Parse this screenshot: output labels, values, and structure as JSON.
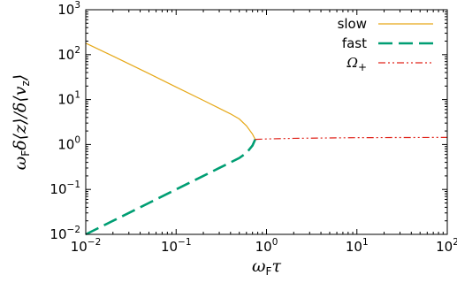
{
  "chart_data": {
    "type": "line",
    "xscale": "log",
    "yscale": "log",
    "xlim": [
      0.01,
      100
    ],
    "ylim": [
      0.01,
      1000
    ],
    "x_ticks": [
      {
        "base": "10",
        "exp": "−2",
        "value": 0.01
      },
      {
        "base": "10",
        "exp": "−1",
        "value": 0.1
      },
      {
        "base": "10",
        "exp": "0",
        "value": 1
      },
      {
        "base": "10",
        "exp": "1",
        "value": 10
      },
      {
        "base": "10",
        "exp": "2",
        "value": 100
      }
    ],
    "y_ticks": [
      {
        "base": "10",
        "exp": "−2",
        "value": 0.01
      },
      {
        "base": "10",
        "exp": "−1",
        "value": 0.1
      },
      {
        "base": "10",
        "exp": "0",
        "value": 1
      },
      {
        "base": "10",
        "exp": "1",
        "value": 10
      },
      {
        "base": "10",
        "exp": "2",
        "value": 100
      },
      {
        "base": "10",
        "exp": "3",
        "value": 1000
      }
    ],
    "xlabel": {
      "main": "ω",
      "sub": "F",
      "rest": "τ"
    },
    "ylabel": {
      "main": "ω",
      "sub": "F",
      "rest": "δ⟨z⟩/δ⟨v",
      "sub2": "z",
      "end": "⟩"
    },
    "legend_position": "top-right",
    "grid": false,
    "series": [
      {
        "name": "slow",
        "color": "#e6a817",
        "style": "solid",
        "points": [
          [
            0.01,
            180
          ],
          [
            0.02,
            93
          ],
          [
            0.05,
            38
          ],
          [
            0.1,
            19
          ],
          [
            0.2,
            9.6
          ],
          [
            0.3,
            6.4
          ],
          [
            0.4,
            4.8
          ],
          [
            0.5,
            3.7
          ],
          [
            0.6,
            2.6
          ],
          [
            0.7,
            1.7
          ],
          [
            0.75,
            1.3
          ]
        ]
      },
      {
        "name": "fast",
        "color": "#009e73",
        "style": "dashed",
        "points": [
          [
            0.01,
            0.01
          ],
          [
            0.02,
            0.02
          ],
          [
            0.05,
            0.05
          ],
          [
            0.1,
            0.1
          ],
          [
            0.2,
            0.2
          ],
          [
            0.3,
            0.3
          ],
          [
            0.4,
            0.4
          ],
          [
            0.5,
            0.5
          ],
          [
            0.6,
            0.65
          ],
          [
            0.7,
            0.95
          ],
          [
            0.75,
            1.3
          ]
        ]
      },
      {
        "name": "Ω",
        "name_sub": "+",
        "color": "#e0241b",
        "style": "dashdotdot",
        "points": [
          [
            0.75,
            1.3
          ],
          [
            1,
            1.33
          ],
          [
            2,
            1.37
          ],
          [
            5,
            1.4
          ],
          [
            10,
            1.42
          ],
          [
            30,
            1.43
          ],
          [
            100,
            1.44
          ]
        ]
      }
    ]
  }
}
